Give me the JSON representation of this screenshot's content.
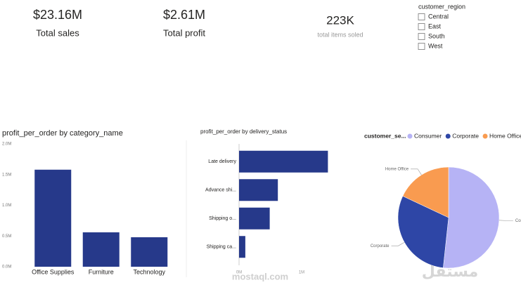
{
  "cards": [
    {
      "value": "$23.16M",
      "label": "Total sales"
    },
    {
      "value": "$2.61M",
      "label": "Total profit"
    },
    {
      "value": "223K",
      "label": "total items soled"
    }
  ],
  "slicer": {
    "title": "customer_region",
    "options": [
      "Central",
      "East",
      "South",
      "West"
    ]
  },
  "chart_data": [
    {
      "type": "bar",
      "title": "profit_per_order by category_name",
      "categories": [
        "Office Supplies",
        "Furniture",
        "Technology"
      ],
      "values": [
        1580000,
        560000,
        480000
      ],
      "color": "#26398a",
      "ylim": [
        0,
        2000000
      ],
      "yticks": [
        {
          "value": 0,
          "label": "0.0M"
        },
        {
          "value": 500000,
          "label": "0.5M"
        },
        {
          "value": 1000000,
          "label": "1.0M"
        },
        {
          "value": 1500000,
          "label": "1.5M"
        },
        {
          "value": 2000000,
          "label": "2.0M"
        }
      ],
      "grid": false
    },
    {
      "type": "hbar",
      "title": "profit_per_order by delivery_status",
      "categories": [
        "Late delivery",
        "Advance shi...",
        "Shipping o...",
        "Shipping ca..."
      ],
      "values": [
        1420000,
        620000,
        490000,
        100000
      ],
      "color": "#26398a",
      "xlim": [
        0,
        1500000
      ],
      "xticks": [
        {
          "value": 0,
          "label": "0M"
        },
        {
          "value": 1000000,
          "label": "1M"
        }
      ],
      "grid": false
    },
    {
      "type": "pie",
      "legend_title": "customer_se...",
      "categories": [
        "Consumer",
        "Corporate",
        "Home Office"
      ],
      "values": [
        51.7,
        30.3,
        18.0
      ],
      "colors": [
        "#b6b3f5",
        "#2e46a6",
        "#f99b50"
      ]
    }
  ],
  "watermark": [
    "مستقل",
    "mostaql.com"
  ]
}
